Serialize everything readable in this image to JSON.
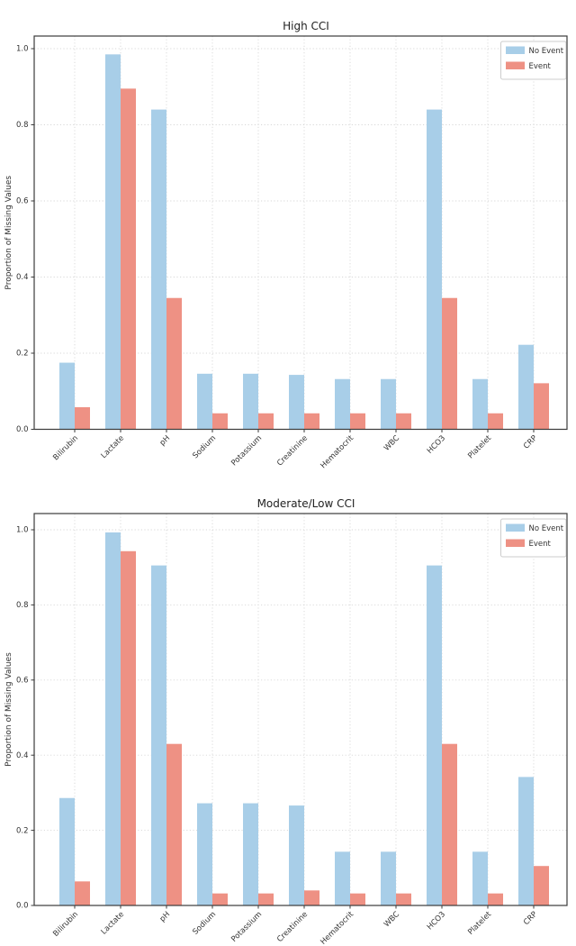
{
  "figure": {
    "background": "#ffffff",
    "colors": {
      "no_event": "#a8cee8",
      "event": "#ee9184",
      "axis": "#3b3b3b",
      "grid": "#d7d7d7",
      "text": "#333333",
      "legend_border": "#cccccc"
    },
    "legend": {
      "items": [
        "No Event",
        "Event"
      ],
      "position": "upper right"
    }
  },
  "chart_data": [
    {
      "type": "bar",
      "title": "High CCI",
      "xlabel": "",
      "ylabel": "Proportion of Missing Values",
      "categories": [
        "Bilirubin",
        "Lactate",
        "pH",
        "Sodium",
        "Potassium",
        "Creatinine",
        "Hematocrit",
        "WBC",
        "HCO3",
        "Platelet",
        "CRP"
      ],
      "series": [
        {
          "name": "No Event",
          "color": "#a8cee8",
          "values": [
            0.175,
            0.985,
            0.84,
            0.146,
            0.146,
            0.143,
            0.132,
            0.132,
            0.84,
            0.132,
            0.222
          ]
        },
        {
          "name": "Event",
          "color": "#ee9184",
          "values": [
            0.058,
            0.895,
            0.345,
            0.042,
            0.042,
            0.042,
            0.042,
            0.042,
            0.345,
            0.042,
            0.121
          ]
        }
      ],
      "ylim": [
        0,
        1.035
      ],
      "yticks": [
        "0.0",
        "0.2",
        "0.4",
        "0.6",
        "0.8",
        "1.0"
      ],
      "grid": true,
      "legend_position": "upper right"
    },
    {
      "type": "bar",
      "title": "Moderate/Low CCI",
      "xlabel": "",
      "ylabel": "Proportion of Missing Values",
      "categories": [
        "Bilirubin",
        "Lactate",
        "pH",
        "Sodium",
        "Potassium",
        "Creatinine",
        "Hematocrit",
        "WBC",
        "HCO3",
        "Platelet",
        "CRP"
      ],
      "series": [
        {
          "name": "No Event",
          "color": "#a8cee8",
          "values": [
            0.286,
            0.993,
            0.905,
            0.272,
            0.272,
            0.266,
            0.143,
            0.143,
            0.905,
            0.143,
            0.342
          ]
        },
        {
          "name": "Event",
          "color": "#ee9184",
          "values": [
            0.064,
            0.943,
            0.43,
            0.032,
            0.032,
            0.04,
            0.032,
            0.032,
            0.43,
            0.032,
            0.105
          ]
        }
      ],
      "ylim": [
        0,
        1.035
      ],
      "yticks": [
        "0.0",
        "0.2",
        "0.4",
        "0.6",
        "0.8",
        "1.0"
      ],
      "grid": true,
      "legend_position": "upper right"
    }
  ]
}
